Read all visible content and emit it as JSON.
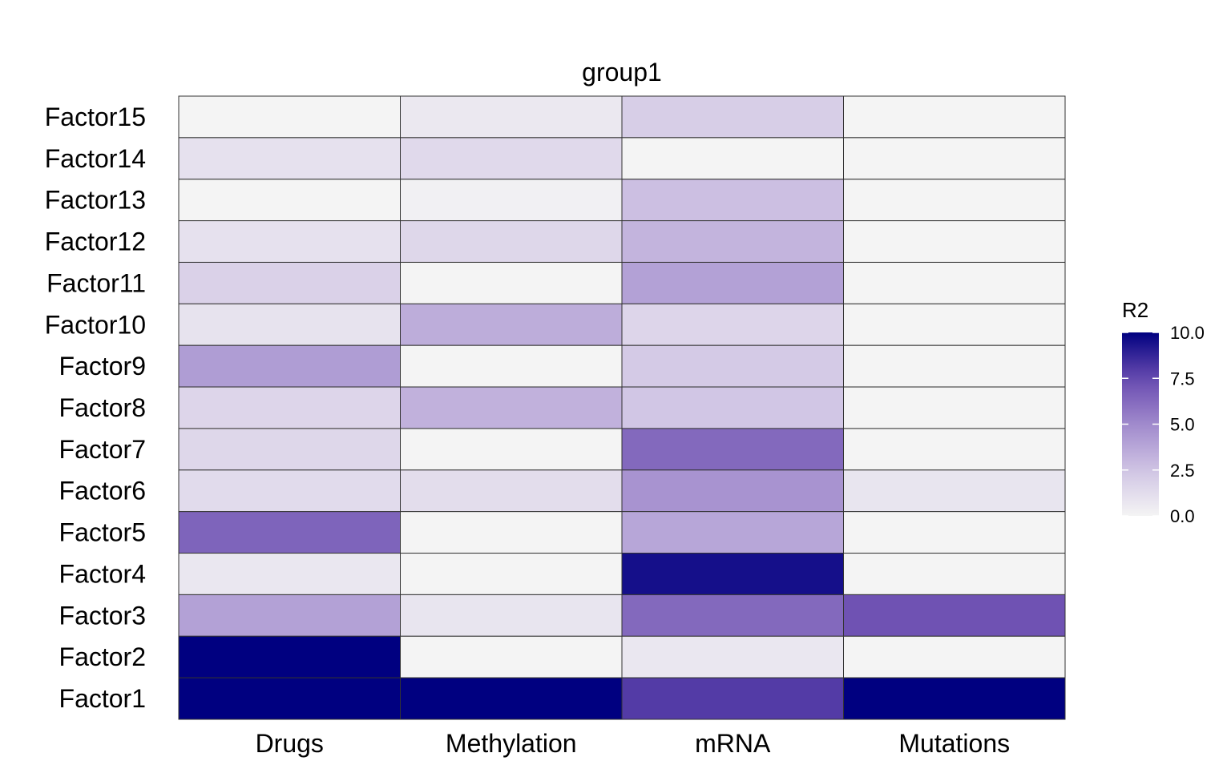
{
  "chart_data": {
    "type": "heatmap",
    "title": "group1",
    "xlabel": "",
    "ylabel": "",
    "columns": [
      "Drugs",
      "Methylation",
      "mRNA",
      "Mutations"
    ],
    "rows": [
      "Factor15",
      "Factor14",
      "Factor13",
      "Factor12",
      "Factor11",
      "Factor10",
      "Factor9",
      "Factor8",
      "Factor7",
      "Factor6",
      "Factor5",
      "Factor4",
      "Factor3",
      "Factor2",
      "Factor1"
    ],
    "values": [
      [
        0.0,
        0.6,
        2.0,
        0.0
      ],
      [
        1.0,
        1.4,
        0.0,
        0.0
      ],
      [
        0.0,
        0.2,
        2.7,
        0.0
      ],
      [
        1.0,
        1.5,
        3.2,
        0.0
      ],
      [
        1.8,
        0.0,
        4.0,
        0.0
      ],
      [
        0.9,
        3.5,
        1.6,
        0.0
      ],
      [
        4.2,
        0.0,
        2.2,
        0.0
      ],
      [
        1.6,
        3.3,
        2.4,
        0.0
      ],
      [
        1.5,
        0.0,
        6.3,
        0.0
      ],
      [
        1.3,
        1.2,
        4.6,
        0.8
      ],
      [
        6.5,
        0.0,
        3.8,
        0.0
      ],
      [
        0.7,
        0.0,
        9.5,
        0.0
      ],
      [
        4.0,
        0.8,
        6.3,
        7.2
      ],
      [
        10.0,
        0.0,
        0.7,
        0.0
      ],
      [
        10.0,
        10.0,
        8.0,
        10.0
      ]
    ],
    "color_scale": {
      "name": "R2",
      "min": 0.0,
      "max": 10.0,
      "low_color": "#f4f4f4",
      "high_color": "#000080",
      "ticks": [
        "10.0",
        "7.5",
        "5.0",
        "2.5",
        "0.0"
      ],
      "tick_values": [
        10.0,
        7.5,
        5.0,
        2.5,
        0.0
      ]
    },
    "grid": false,
    "legend_position": "right"
  }
}
